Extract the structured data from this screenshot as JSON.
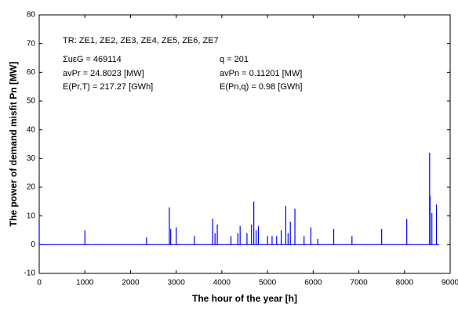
{
  "chart_data": {
    "type": "line",
    "xlabel": "The hour of the year   [h]",
    "ylabel": "The power of demand misfit  Pn [MW]",
    "annotations": [
      "TR: ZE1, ZE2, ZE3, ZE4, ZE5, ZE6, ZE7",
      "ΣuεG = 469114",
      "q = 201",
      "avPr = 24.8023 [MW]",
      "avPn = 0.11201 [MW]",
      "E(Pr,T) = 217.27 [GWh]",
      "E(Pn,q) = 0.98 [GWh]"
    ],
    "color": "#0000ff",
    "x": [
      0,
      0,
      0,
      1000,
      1000,
      1000,
      2350,
      2350,
      2350,
      2850,
      2850,
      2850,
      2880,
      2880,
      2880,
      3000,
      3000,
      3000,
      3400,
      3400,
      3400,
      3800,
      3800,
      3800,
      3850,
      3850,
      3850,
      3900,
      3900,
      3900,
      4200,
      4200,
      4200,
      4350,
      4350,
      4350,
      4400,
      4400,
      4400,
      4550,
      4550,
      4550,
      4650,
      4650,
      4650,
      4700,
      4700,
      4700,
      4750,
      4750,
      4750,
      4800,
      4800,
      4800,
      5000,
      5000,
      5000,
      5100,
      5100,
      5100,
      5200,
      5200,
      5200,
      5300,
      5300,
      5300,
      5400,
      5400,
      5400,
      5450,
      5450,
      5450,
      5500,
      5500,
      5500,
      5600,
      5600,
      5600,
      5800,
      5800,
      5800,
      5950,
      5950,
      5950,
      6100,
      6100,
      6100,
      6450,
      6450,
      6450,
      6850,
      6850,
      6850,
      7500,
      7500,
      7500,
      8050,
      8050,
      8050,
      8550,
      8550,
      8550,
      8560,
      8560,
      8560,
      8600,
      8600,
      8600,
      8700,
      8700,
      8700,
      8760
    ],
    "values": [
      0,
      8,
      0,
      0,
      5,
      0,
      0,
      2.5,
      0,
      0,
      13,
      0,
      0,
      5.5,
      0,
      0,
      6,
      0,
      0,
      3,
      0,
      0,
      9,
      0,
      0,
      4,
      0,
      0,
      7,
      0,
      0,
      3,
      0,
      0,
      4,
      0,
      0,
      6.5,
      0,
      0,
      4,
      0,
      0,
      7,
      0,
      0,
      15,
      0,
      0,
      5,
      0,
      0,
      6.5,
      0,
      0,
      3,
      0,
      0,
      3,
      0,
      0,
      3,
      0,
      0,
      5,
      0,
      0,
      13.5,
      0,
      0,
      4,
      0,
      0,
      8,
      0,
      0,
      12.5,
      0,
      0,
      3,
      0,
      0,
      6,
      0,
      0,
      2,
      0,
      0,
      5.5,
      0,
      0,
      3,
      0,
      0,
      5.5,
      0,
      0,
      9,
      0,
      0,
      32,
      0,
      0,
      17,
      0,
      0,
      11,
      0,
      0,
      14,
      0,
      0
    ],
    "xlim": [
      0,
      9000
    ],
    "xticks": [
      0,
      1000,
      2000,
      3000,
      4000,
      5000,
      6000,
      7000,
      8000,
      9000
    ],
    "ylim": [
      -10,
      80
    ],
    "yticks": [
      -10,
      0,
      10,
      20,
      30,
      40,
      50,
      60,
      70,
      80
    ]
  }
}
